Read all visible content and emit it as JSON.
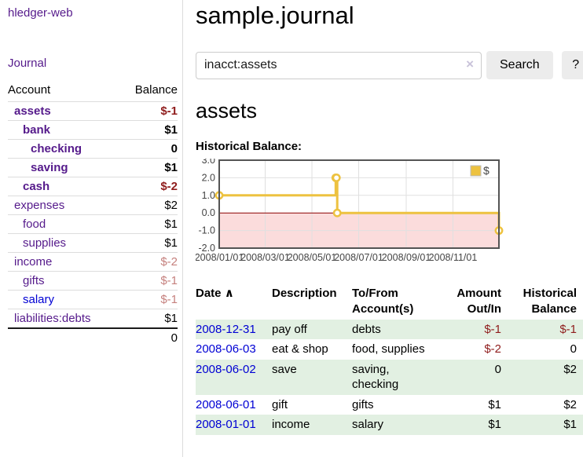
{
  "colors": {
    "link_purple": "#551a8b",
    "link_blue": "#0000d4",
    "negative_strong": "#8f1c1c",
    "negative_muted": "#c5807d",
    "row_green": "#e2f0e2",
    "series_gold": "#edc240",
    "button_gray": "#ececec"
  },
  "sidebar": {
    "brand": "hledger-web",
    "journal_link": "Journal",
    "accounts": {
      "headers": {
        "account": "Account",
        "balance": "Balance"
      },
      "rows": [
        {
          "label": "assets",
          "balance": "$-1",
          "indent": 1,
          "bold": true,
          "balance_color": "negative-strong"
        },
        {
          "label": "bank",
          "balance": "$1",
          "indent": 2,
          "bold": true,
          "balance_color": "black"
        },
        {
          "label": "checking",
          "balance": "0",
          "indent": 3,
          "bold": true,
          "balance_color": "black"
        },
        {
          "label": "saving",
          "balance": "$1",
          "indent": 3,
          "bold": true,
          "balance_color": "black"
        },
        {
          "label": "cash",
          "balance": "$-2",
          "indent": 2,
          "bold": true,
          "balance_color": "negative-strong"
        },
        {
          "label": "expenses",
          "balance": "$2",
          "indent": 1,
          "bold": false,
          "balance_color": "black"
        },
        {
          "label": "food",
          "balance": "$1",
          "indent": 2,
          "bold": false,
          "balance_color": "black"
        },
        {
          "label": "supplies",
          "balance": "$1",
          "indent": 2,
          "bold": false,
          "balance_color": "black"
        },
        {
          "label": "income",
          "balance": "$-2",
          "indent": 1,
          "bold": false,
          "balance_color": "negative-muted"
        },
        {
          "label": "gifts",
          "balance": "$-1",
          "indent": 2,
          "bold": false,
          "balance_color": "negative-muted"
        },
        {
          "label": "salary",
          "balance": "$-1",
          "indent": 2,
          "bold": false,
          "balance_color": "negative-muted",
          "link_color": "blue"
        },
        {
          "label": "liabilities:debts",
          "balance": "$1",
          "indent": 1,
          "bold": false,
          "balance_color": "black"
        }
      ],
      "total": "0"
    }
  },
  "main": {
    "title": "sample.journal",
    "search": {
      "value": "inacct:assets",
      "clear_icon": "×",
      "search_button": "Search",
      "help_button": "?"
    },
    "section_heading": "assets",
    "chart_label": "Historical Balance:",
    "register": {
      "headers": {
        "date": "Date",
        "sort_arrow": "∧",
        "description": "Description",
        "accounts": "To/From Account(s)",
        "amount": "Amount Out/In",
        "balance": "Historical Balance"
      },
      "rows": [
        {
          "date": "2008-12-31",
          "description": "pay off",
          "accounts": "debts",
          "amount": "$-1",
          "balance": "$-1"
        },
        {
          "date": "2008-06-03",
          "description": "eat & shop",
          "accounts": "food, supplies",
          "amount": "$-2",
          "balance": "0"
        },
        {
          "date": "2008-06-02",
          "description": "save",
          "accounts": "saving, checking",
          "amount": "0",
          "balance": "$2"
        },
        {
          "date": "2008-06-01",
          "description": "gift",
          "accounts": "gifts",
          "amount": "$1",
          "balance": "$2"
        },
        {
          "date": "2008-01-01",
          "description": "income",
          "accounts": "salary",
          "amount": "$1",
          "balance": "$1"
        }
      ]
    }
  },
  "chart_data": {
    "type": "line",
    "step": true,
    "title": "Historical Balance",
    "xlabel": "",
    "ylabel": "",
    "series": [
      {
        "name": "$",
        "color": "#edc240",
        "points": [
          [
            "2008-01-01",
            1
          ],
          [
            "2008-06-01",
            2
          ],
          [
            "2008-06-02",
            2
          ],
          [
            "2008-06-03",
            0
          ],
          [
            "2008-12-31",
            -1
          ]
        ]
      }
    ],
    "xlim": [
      "2008-01-01",
      "2008-12-31"
    ],
    "ylim": [
      -2,
      3
    ],
    "yticks": [
      "3.0",
      "2.0",
      "1.0",
      "0.0",
      "-1.0",
      "-2.0"
    ],
    "xticks": [
      "2008/01/01",
      "2008/03/01",
      "2008/05/01",
      "2008/07/01",
      "2008/09/01",
      "2008/11/01"
    ],
    "legend": {
      "label": "$",
      "position": "top-right"
    },
    "grid": true,
    "grid_color": "#e0e0e0",
    "border_color": "#545454",
    "zero_line_color": "#8b0000",
    "negative_region_color": "#fbdcdc"
  }
}
